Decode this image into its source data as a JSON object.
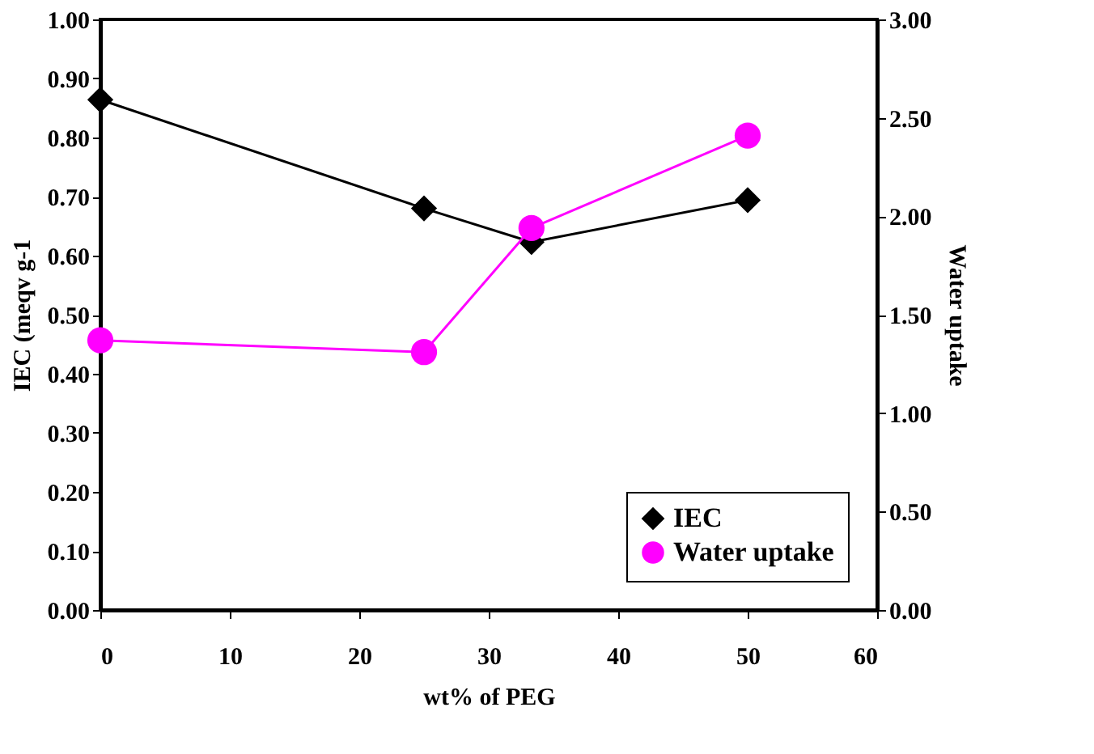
{
  "chart_data": {
    "type": "line",
    "xlabel": "wt% of PEG",
    "ylabel": "IEC (meqv g-1",
    "y2label": "Water uptake",
    "x": [
      0,
      25,
      33.3,
      50
    ],
    "series": [
      {
        "name": "IEC",
        "color": "#000000",
        "values": [
          0.864,
          0.68,
          0.623,
          0.694
        ],
        "marker": "diamond"
      },
      {
        "name": "Water uptake",
        "color": "#ff00ff",
        "values": [
          1.37,
          1.31,
          1.94,
          2.41
        ],
        "marker": "circle",
        "axis": "y2"
      }
    ],
    "xlim": [
      0,
      60
    ],
    "xticks": [
      0,
      10,
      20,
      30,
      40,
      50,
      60
    ],
    "ylim": [
      0,
      1
    ],
    "yticks": [
      {
        "value": 0,
        "label": "0.00"
      },
      {
        "value": 0.1,
        "label": "0.10"
      },
      {
        "value": 0.2,
        "label": "0.20"
      },
      {
        "value": 0.3,
        "label": "0.30"
      },
      {
        "value": 0.4,
        "label": "0.40"
      },
      {
        "value": 0.5,
        "label": "0.50"
      },
      {
        "value": 0.6,
        "label": "0.60"
      },
      {
        "value": 0.7,
        "label": "0.70"
      },
      {
        "value": 0.8,
        "label": "0.80"
      },
      {
        "value": 0.9,
        "label": "0.90"
      },
      {
        "value": 1,
        "label": "1.00"
      }
    ],
    "y2lim": [
      0,
      3
    ],
    "y2ticks": [
      {
        "value": 0,
        "label": "0.00"
      },
      {
        "value": 0.5,
        "label": "0.50"
      },
      {
        "value": 1,
        "label": "1.00"
      },
      {
        "value": 1.5,
        "label": "1.50"
      },
      {
        "value": 2,
        "label": "2.00"
      },
      {
        "value": 2.5,
        "label": "2.50"
      },
      {
        "value": 3,
        "label": "3.00"
      }
    ],
    "grid": false,
    "legend": "bottom right",
    "line_style": "solid"
  }
}
